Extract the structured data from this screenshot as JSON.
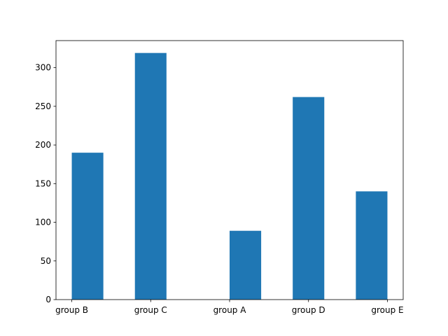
{
  "chart_data": {
    "type": "histogram",
    "title": "",
    "xlabel": "",
    "ylabel": "",
    "categories": [
      "group B",
      "group C",
      "group A",
      "group D",
      "group E"
    ],
    "bins": [
      {
        "label": "group B",
        "x_start": -0.0,
        "x_end": 0.4,
        "count": 190
      },
      {
        "label": "",
        "x_start": 0.4,
        "x_end": 0.8,
        "count": 0
      },
      {
        "label": "group C",
        "x_start": 0.8,
        "x_end": 1.2,
        "count": 319
      },
      {
        "label": "",
        "x_start": 1.2,
        "x_end": 1.6,
        "count": 0
      },
      {
        "label": "",
        "x_start": 1.6,
        "x_end": 2.0,
        "count": 0
      },
      {
        "label": "group A",
        "x_start": 2.0,
        "x_end": 2.4,
        "count": 89
      },
      {
        "label": "",
        "x_start": 2.4,
        "x_end": 2.8,
        "count": 0
      },
      {
        "label": "group D",
        "x_start": 2.8,
        "x_end": 3.2,
        "count": 262
      },
      {
        "label": "",
        "x_start": 3.2,
        "x_end": 3.6,
        "count": 0
      },
      {
        "label": "group E",
        "x_start": 3.6,
        "x_end": 4.0,
        "count": 140
      }
    ],
    "xticks": [
      {
        "value": 0,
        "label": "group B"
      },
      {
        "value": 1,
        "label": "group C"
      },
      {
        "value": 2,
        "label": "group A"
      },
      {
        "value": 3,
        "label": "group D"
      },
      {
        "value": 4,
        "label": "group E"
      }
    ],
    "yticks": [
      0,
      50,
      100,
      150,
      200,
      250,
      300
    ],
    "xlim": [
      -0.2,
      4.2
    ],
    "ylim": [
      0,
      335
    ],
    "grid": false,
    "bar_color": "#1f77b4"
  }
}
